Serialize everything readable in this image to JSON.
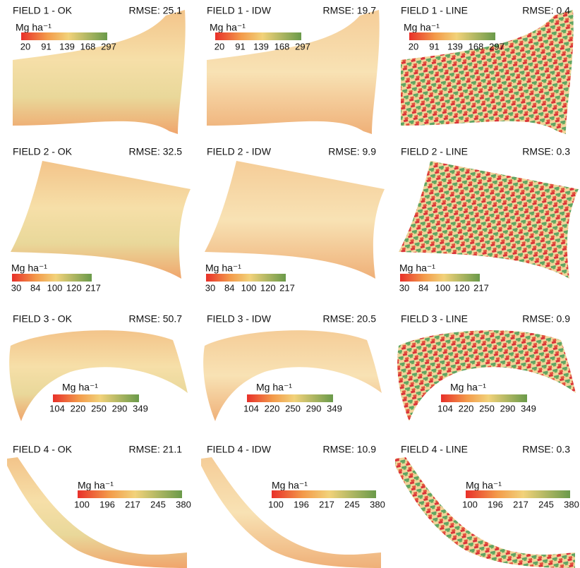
{
  "panels": [
    {
      "title": "FIELD 1 - OK",
      "rmse": "RMSE: 25.1",
      "unit": "Mg ha⁻¹",
      "ticks": [
        20,
        91,
        139,
        168,
        297
      ]
    },
    {
      "title": "FIELD 1 - IDW",
      "rmse": "RMSE: 19.7",
      "unit": "Mg ha⁻¹",
      "ticks": [
        20,
        91,
        139,
        168,
        297
      ]
    },
    {
      "title": "FIELD 1 - LINE",
      "rmse": "RMSE: 0.4",
      "unit": "Mg ha⁻¹",
      "ticks": [
        20,
        91,
        139,
        168,
        297
      ]
    },
    {
      "title": "FIELD 2 - OK",
      "rmse": "RMSE: 32.5",
      "unit": "Mg ha⁻¹",
      "ticks": [
        30,
        84,
        100,
        120,
        217
      ]
    },
    {
      "title": "FIELD 2 - IDW",
      "rmse": "RMSE: 9.9",
      "unit": "Mg ha⁻¹",
      "ticks": [
        30,
        84,
        100,
        120,
        217
      ]
    },
    {
      "title": "FIELD 2 - LINE",
      "rmse": "RMSE: 0.3",
      "unit": "Mg ha⁻¹",
      "ticks": [
        30,
        84,
        100,
        120,
        217
      ]
    },
    {
      "title": "FIELD 3 - OK",
      "rmse": "RMSE: 50.7",
      "unit": "Mg ha⁻¹",
      "ticks": [
        104,
        220,
        250,
        290,
        349
      ]
    },
    {
      "title": "FIELD 3 - IDW",
      "rmse": "RMSE: 20.5",
      "unit": "Mg ha⁻¹",
      "ticks": [
        104,
        220,
        250,
        290,
        349
      ]
    },
    {
      "title": "FIELD 3 - LINE",
      "rmse": "RMSE: 0.9",
      "unit": "Mg ha⁻¹",
      "ticks": [
        104,
        220,
        250,
        290,
        349
      ]
    },
    {
      "title": "FIELD 4 - OK",
      "rmse": "RMSE: 21.1",
      "unit": "Mg ha⁻¹",
      "ticks": [
        100,
        196,
        217,
        245,
        380
      ]
    },
    {
      "title": "FIELD 4 - IDW",
      "rmse": "RMSE: 10.9",
      "unit": "Mg ha⁻¹",
      "ticks": [
        100,
        196,
        217,
        245,
        380
      ]
    },
    {
      "title": "FIELD 4 - LINE",
      "rmse": "RMSE: 0.3",
      "unit": "Mg ha⁻¹",
      "ticks": [
        100,
        196,
        217,
        245,
        380
      ]
    }
  ]
}
